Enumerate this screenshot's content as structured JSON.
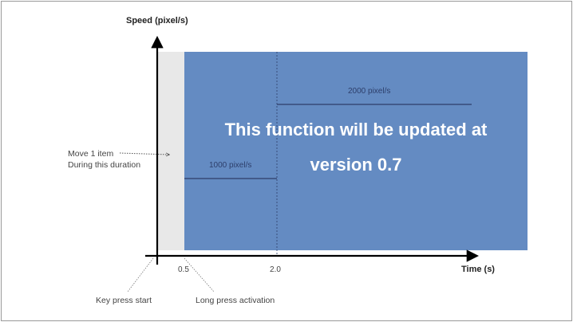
{
  "axes": {
    "y_title": "Speed (pixel/s)",
    "x_title": "Time (s)",
    "x_ticks": [
      "0.5",
      "2.0"
    ]
  },
  "annotations": {
    "move_one_item_line1": "Move 1 item",
    "move_one_item_line2": "During this duration",
    "key_press_start": "Key press start",
    "long_press_activation": "Long press activation",
    "speed_level_1": "1000 pixel/s",
    "speed_level_2": "2000 pixel/s"
  },
  "overlay": {
    "line1": "This function will be updated at",
    "line2": "version 0.7"
  },
  "colors": {
    "overlay_blue": "#4a78b8",
    "initial_period_gray": "#e8e8e8",
    "axis": "#000000",
    "speed_line": "#2d3e6a"
  }
}
